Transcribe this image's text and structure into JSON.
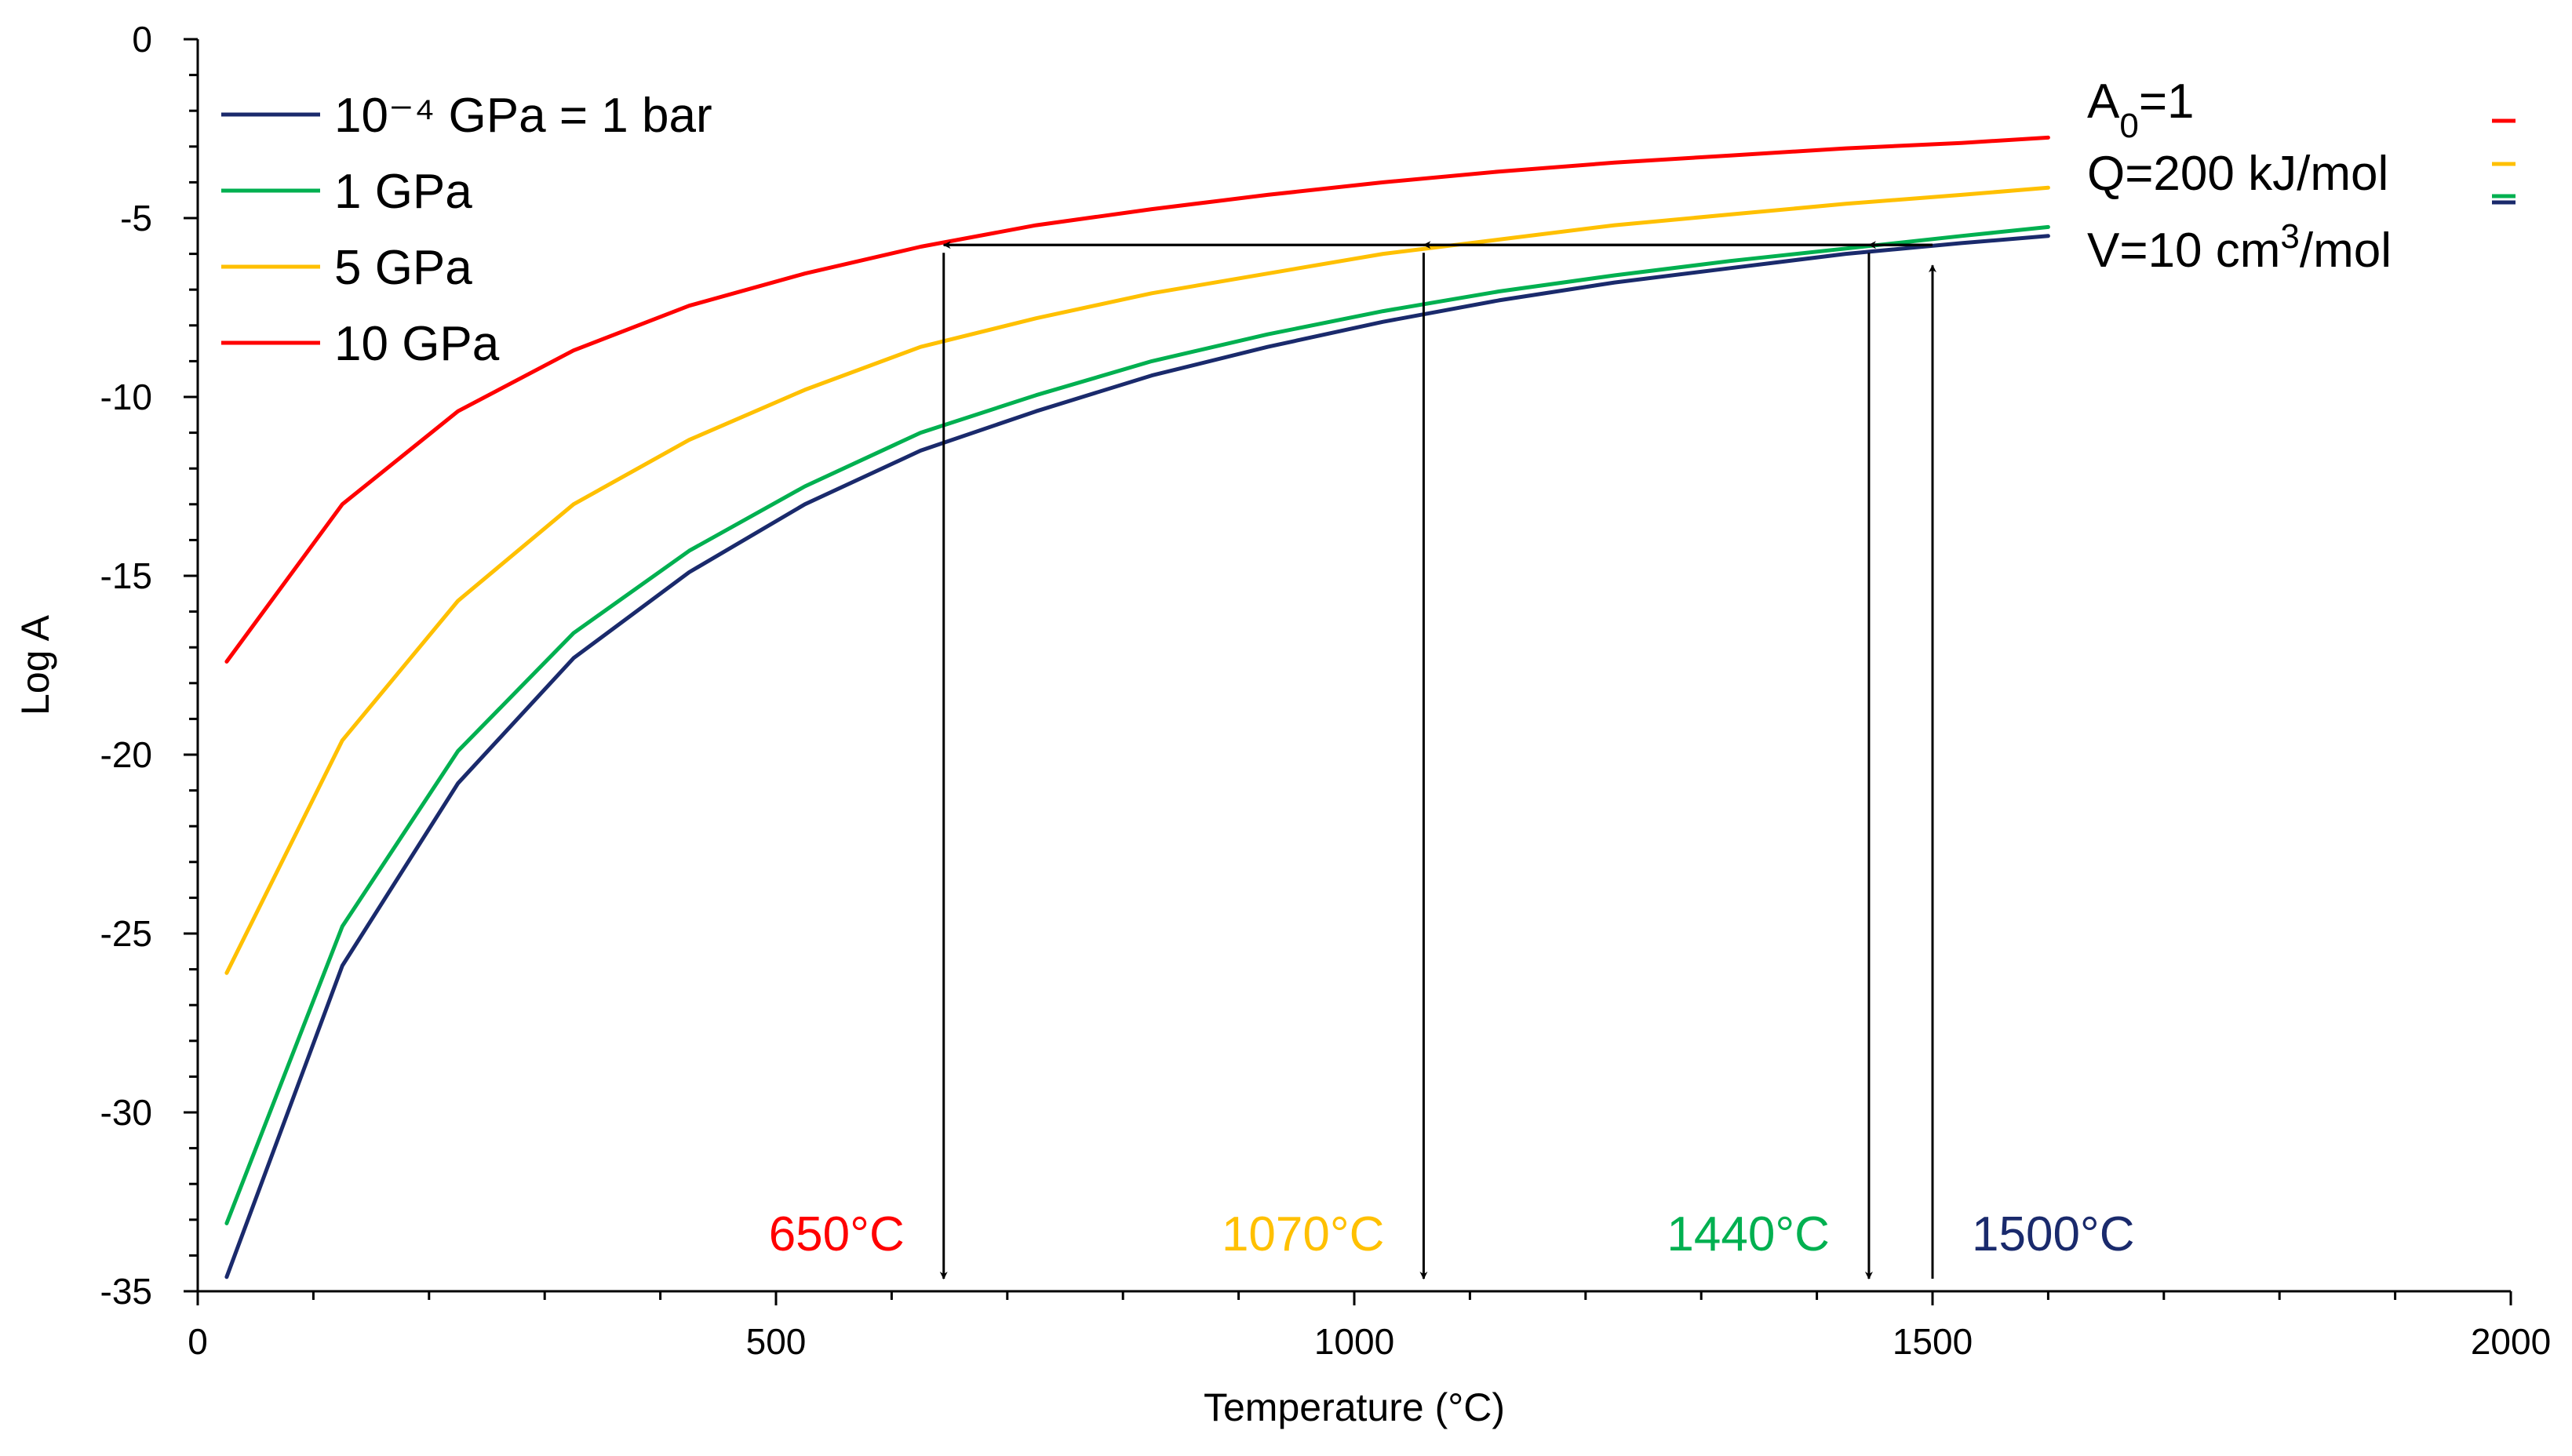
{
  "chart_data": {
    "type": "line",
    "title": "",
    "xlabel": "Temperature (°C)",
    "ylabel": "Log A",
    "xlim": [
      0,
      2000
    ],
    "ylim": [
      -35,
      0
    ],
    "x_ticks": [
      0,
      500,
      1000,
      1500,
      2000
    ],
    "y_ticks": [
      0,
      -5,
      -10,
      -15,
      -20,
      -25,
      -30,
      -35
    ],
    "x_tick_labels": [
      "0",
      "500",
      "1000",
      "1500",
      "2000"
    ],
    "y_tick_labels": [
      "0",
      "-5",
      "-10",
      "-15",
      "-20",
      "-25",
      "-30",
      "-35"
    ],
    "grid": false,
    "legend_position": "top-left",
    "series": [
      {
        "name": "10⁻⁴ GPa = 1 bar",
        "color": "#1a2a6c",
        "x": [
          25,
          125,
          225,
          325,
          425,
          525,
          625,
          725,
          825,
          925,
          1025,
          1125,
          1225,
          1325,
          1425,
          1525,
          1600
        ],
        "values": [
          -34.6,
          -25.9,
          -20.8,
          -17.3,
          -14.9,
          -13.0,
          -11.5,
          -10.4,
          -9.4,
          -8.6,
          -7.9,
          -7.3,
          -6.8,
          -6.4,
          -6.0,
          -5.7,
          -5.5
        ]
      },
      {
        "name": "1 GPa",
        "color": "#00b050",
        "x": [
          25,
          125,
          225,
          325,
          425,
          525,
          625,
          725,
          825,
          925,
          1025,
          1125,
          1225,
          1325,
          1425,
          1525,
          1600
        ],
        "values": [
          -33.1,
          -24.8,
          -19.9,
          -16.6,
          -14.3,
          -12.5,
          -11.0,
          -9.95,
          -9.0,
          -8.25,
          -7.6,
          -7.05,
          -6.6,
          -6.2,
          -5.85,
          -5.5,
          -5.25
        ]
      },
      {
        "name": "5 GPa",
        "color": "#ffc000",
        "x": [
          25,
          125,
          225,
          325,
          425,
          525,
          625,
          725,
          825,
          925,
          1025,
          1125,
          1225,
          1325,
          1425,
          1525,
          1600
        ],
        "values": [
          -26.1,
          -19.6,
          -15.7,
          -13.0,
          -11.2,
          -9.8,
          -8.6,
          -7.8,
          -7.1,
          -6.55,
          -6.0,
          -5.6,
          -5.2,
          -4.9,
          -4.6,
          -4.35,
          -4.15
        ]
      },
      {
        "name": "10 GPa",
        "color": "#ff0000",
        "x": [
          25,
          125,
          225,
          325,
          425,
          525,
          625,
          725,
          825,
          925,
          1025,
          1125,
          1225,
          1325,
          1425,
          1525,
          1600
        ],
        "values": [
          -17.4,
          -13.0,
          -10.4,
          -8.7,
          -7.45,
          -6.55,
          -5.8,
          -5.2,
          -4.75,
          -4.35,
          -4.0,
          -3.7,
          -3.45,
          -3.25,
          -3.05,
          -2.9,
          -2.75
        ]
      }
    ],
    "params": {
      "a0": "A",
      "a0_sub": "0",
      "a0_rest": "=1",
      "q": "Q=200 kJ/mol",
      "v_pre": "V=10 cm",
      "v_sup": "3",
      "v_post": "/mol"
    },
    "annotations": {
      "reference_log_a": -5.75,
      "temperatures": [
        {
          "label": "650°C",
          "x": 645,
          "color": "#ff0000"
        },
        {
          "label": "1070°C",
          "x": 1060,
          "color": "#ffc000"
        },
        {
          "label": "1440°C",
          "x": 1445,
          "color": "#00b050"
        },
        {
          "label": "1500°C",
          "x": 1500,
          "color": "#1a2a6c"
        }
      ]
    }
  }
}
